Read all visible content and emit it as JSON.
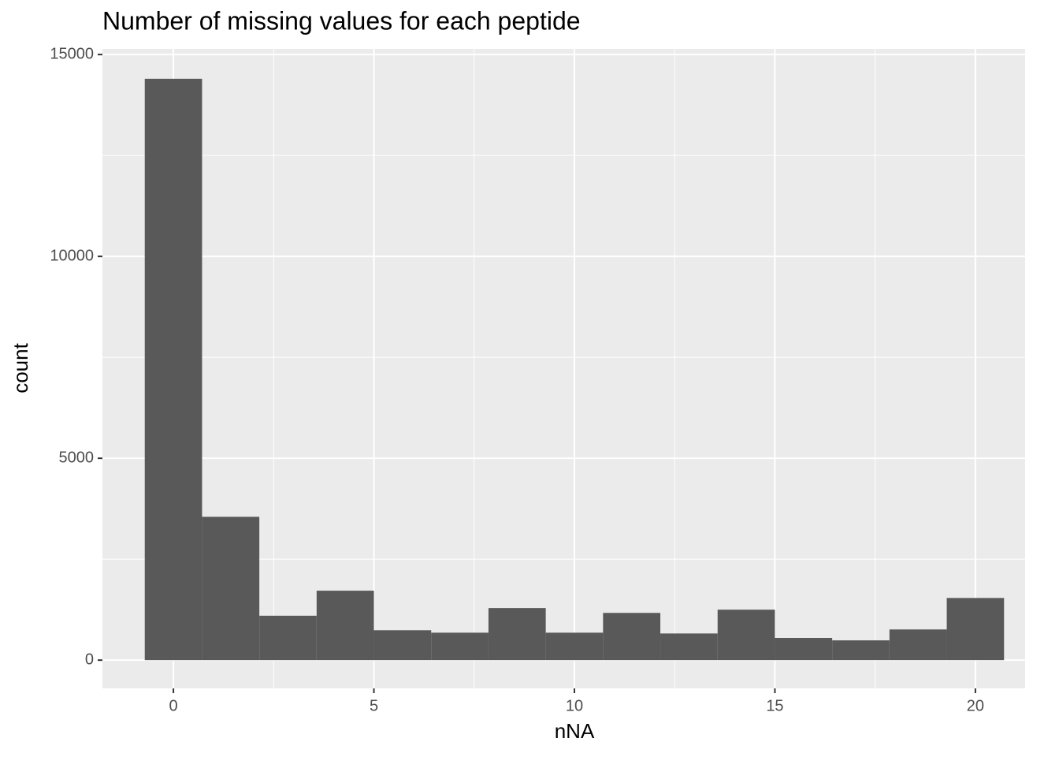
{
  "chart_data": {
    "type": "histogram",
    "title": "Number of missing values for each peptide",
    "x_label": "nNA",
    "y_label": "count",
    "bins": [
      -0.7143,
      0.7143,
      2.1429,
      3.5714,
      5,
      6.4286,
      7.8571,
      9.2857,
      10.7143,
      12.1429,
      13.5714,
      15,
      16.4286,
      17.8571,
      19.2857,
      20.7143
    ],
    "values": [
      14400,
      3550,
      1100,
      1720,
      740,
      680,
      1290,
      680,
      1170,
      660,
      1250,
      550,
      490,
      760,
      1540
    ],
    "color": "#595959",
    "xlim": [
      -1.77,
      21.24
    ],
    "xticks": [
      0,
      5,
      10,
      15,
      20
    ],
    "ylim": [
      -700,
      15140
    ],
    "yticks": [
      0,
      5000,
      10000,
      15000
    ],
    "grid": true
  }
}
